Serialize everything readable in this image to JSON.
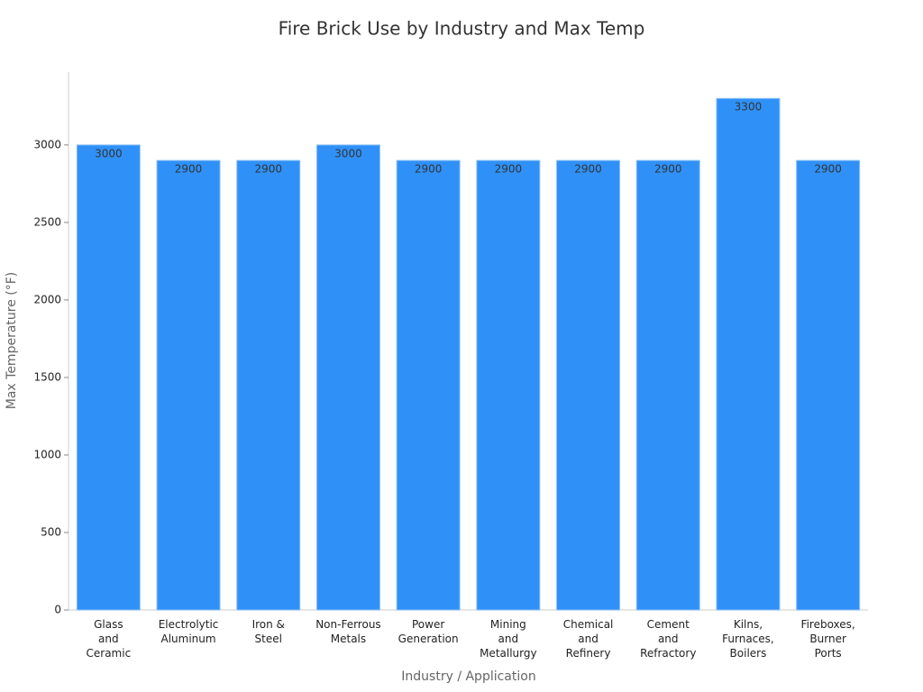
{
  "chart_data": {
    "type": "bar",
    "title": "Fire Brick Use by Industry and Max Temp",
    "x_label": "Industry / Application",
    "y_label": "Max Temperature (°F)",
    "categories": [
      "Glass\nand\nCeramic",
      "Electrolytic\nAluminum",
      "Iron &\nSteel",
      "Non-Ferrous\nMetals",
      "Power\nGeneration",
      "Mining\nand\nMetallurgy",
      "Chemical\nand\nRefinery",
      "Cement\nand\nRefractory",
      "Kilns,\nFurnaces,\nBoilers",
      "Fireboxes,\nBurner\nPorts"
    ],
    "values": [
      3000,
      2900,
      2900,
      3000,
      2900,
      2900,
      2900,
      2900,
      3300,
      2900
    ],
    "color": "#2f91f8",
    "ylim": [
      0,
      3470
    ],
    "yticks": [
      0,
      500,
      1000,
      1500,
      2000,
      2500,
      3000
    ],
    "grid": false
  }
}
